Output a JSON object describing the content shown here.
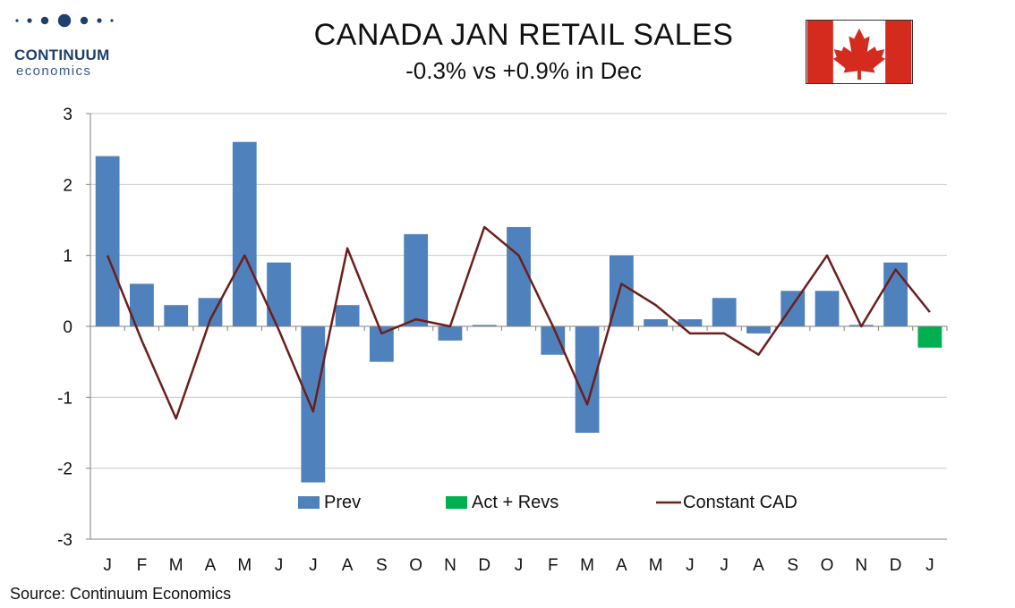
{
  "brand": {
    "name": "CONTINUUM",
    "sub": "economics"
  },
  "header": {
    "title": "CANADA JAN RETAIL SALES",
    "subtitle": "-0.3% vs +0.9% in Dec"
  },
  "flag": {
    "red": "#d52b1e",
    "white": "#ffffff"
  },
  "footer": {
    "source": "Source: Continuum Economics"
  },
  "colors": {
    "prev": "#4f81bd",
    "act": "#00b050",
    "line": "#6b1f1a",
    "grid": "#c8c8c8"
  },
  "chart_data": {
    "type": "bar",
    "categories": [
      "J",
      "F",
      "M",
      "A",
      "M",
      "J",
      "J",
      "A",
      "S",
      "O",
      "N",
      "D",
      "J",
      "F",
      "M",
      "A",
      "M",
      "J",
      "J",
      "A",
      "S",
      "O",
      "N",
      "D",
      "J"
    ],
    "ylim": [
      -3,
      3
    ],
    "yticks": [
      -3,
      -2,
      -1,
      0,
      1,
      2,
      3
    ],
    "grid": true,
    "legend_position": "bottom",
    "series": [
      {
        "name": "Prev",
        "type": "bar",
        "values": [
          2.4,
          0.6,
          0.3,
          0.4,
          2.6,
          0.9,
          -2.2,
          0.3,
          -0.5,
          1.3,
          -0.2,
          0.02,
          1.4,
          -0.4,
          -1.5,
          1.0,
          0.1,
          0.1,
          0.4,
          -0.1,
          0.5,
          0.5,
          0.02,
          0.9,
          null
        ]
      },
      {
        "name": "Act + Revs",
        "type": "bar",
        "values": [
          null,
          null,
          null,
          null,
          null,
          null,
          null,
          null,
          null,
          null,
          null,
          null,
          null,
          null,
          null,
          null,
          null,
          null,
          null,
          null,
          null,
          null,
          null,
          null,
          -0.3
        ]
      },
      {
        "name": "Constant CAD",
        "type": "line",
        "values": [
          1.0,
          -0.2,
          -1.3,
          0.1,
          1.0,
          -0.05,
          -1.2,
          1.1,
          -0.1,
          0.1,
          0.0,
          1.4,
          1.0,
          0.0,
          -1.1,
          0.6,
          0.3,
          -0.1,
          -0.1,
          -0.4,
          0.3,
          1.0,
          0.0,
          0.8,
          0.2
        ]
      }
    ]
  }
}
